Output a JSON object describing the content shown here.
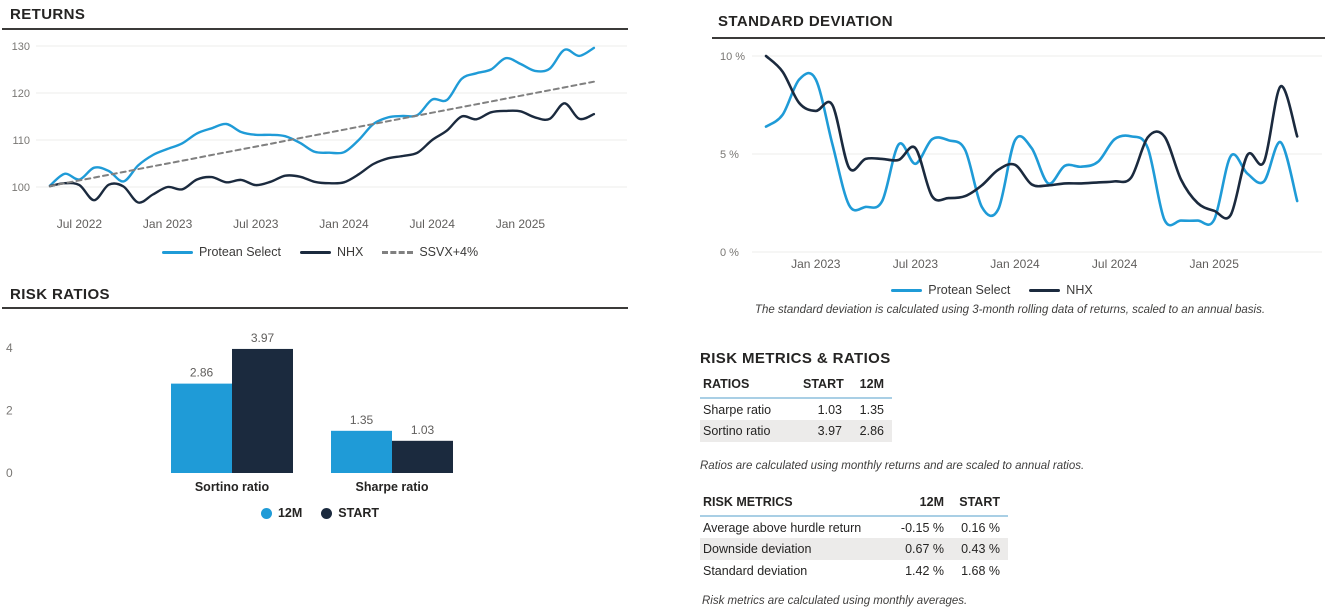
{
  "theme": {
    "accent_blue": "#1f9bd7",
    "navy": "#1b2a3e",
    "dash_gray": "#808080",
    "grid_line": "#ededeb",
    "y_tick_color": "#797774",
    "x_tick_color": "#605e5c",
    "bar_value_color": "#605e5c",
    "header_underline": "#a9cfe5",
    "row_alt_bg": "#ecebea"
  },
  "chart_data": [
    {
      "id": "returns",
      "type": "line",
      "title": "RETURNS",
      "n_points": 38,
      "x_start": "May 2022",
      "x_ticks": [
        {
          "index": 2,
          "label": "Jul 2022"
        },
        {
          "index": 8,
          "label": "Jan 2023"
        },
        {
          "index": 14,
          "label": "Jul 2023"
        },
        {
          "index": 20,
          "label": "Jan 2024"
        },
        {
          "index": 26,
          "label": "Jul 2024"
        },
        {
          "index": 32,
          "label": "Jan 2025"
        }
      ],
      "y_ticks": [
        {
          "value": 100,
          "label": "100"
        },
        {
          "value": 110,
          "label": "110"
        },
        {
          "value": 120,
          "label": "120"
        },
        {
          "value": 130,
          "label": "130"
        }
      ],
      "ylim": [
        95,
        132
      ],
      "grid": true,
      "legend_position": "bottom",
      "series": [
        {
          "name": "Protean Select",
          "color": "#1f9bd7",
          "style": "solid",
          "values": [
            100.3,
            102.8,
            101.6,
            104.1,
            103.4,
            101.2,
            104.6,
            106.8,
            108.1,
            109.3,
            111.4,
            112.5,
            113.4,
            111.7,
            111.1,
            111.1,
            110.8,
            109.4,
            107.5,
            107.3,
            107.4,
            110.0,
            113.4,
            114.8,
            115.1,
            115.3,
            118.6,
            118.5,
            123.0,
            124.2,
            125.0,
            127.4,
            126.2,
            124.7,
            125.2,
            129.2,
            127.9,
            129.6
          ]
        },
        {
          "name": "NHX",
          "color": "#1b2a3e",
          "style": "solid",
          "values": [
            100.2,
            100.8,
            100.4,
            97.2,
            100.5,
            100.1,
            96.7,
            98.4,
            100.0,
            99.5,
            101.6,
            102.1,
            101.0,
            101.5,
            100.4,
            101.1,
            102.4,
            102.2,
            101.1,
            100.8,
            101.0,
            102.7,
            104.9,
            106.1,
            106.6,
            107.3,
            110.0,
            112.0,
            115.0,
            114.4,
            115.9,
            116.2,
            116.1,
            114.8,
            114.5,
            117.8,
            114.5,
            115.5
          ]
        },
        {
          "name": "SSVX+4%",
          "color": "#808080",
          "style": "dashed",
          "values": [
            100.2,
            100.8,
            101.4,
            102.0,
            102.6,
            103.2,
            103.8,
            104.4,
            105.0,
            105.6,
            106.2,
            106.8,
            107.4,
            108.0,
            108.6,
            109.2,
            109.8,
            110.4,
            111.0,
            111.6,
            112.2,
            112.8,
            113.4,
            114.0,
            114.6,
            115.2,
            115.8,
            116.4,
            117.0,
            117.6,
            118.2,
            118.8,
            119.4,
            120.0,
            120.6,
            121.2,
            121.8,
            122.4
          ]
        }
      ]
    },
    {
      "id": "standard_deviation",
      "type": "line",
      "title": "STANDARD DEVIATION",
      "n_points": 33,
      "x_start": "Oct 2022",
      "x_ticks": [
        {
          "index": 3,
          "label": "Jan 2023"
        },
        {
          "index": 9,
          "label": "Jul 2023"
        },
        {
          "index": 15,
          "label": "Jan 2024"
        },
        {
          "index": 21,
          "label": "Jul 2024"
        },
        {
          "index": 27,
          "label": "Jan 2025"
        }
      ],
      "y_ticks": [
        {
          "value": 0,
          "label": "0 %"
        },
        {
          "value": 5,
          "label": "5 %"
        },
        {
          "value": 10,
          "label": "10 %"
        }
      ],
      "ylim": [
        0,
        10.5
      ],
      "grid": true,
      "legend_position": "bottom",
      "series": [
        {
          "name": "Protean Select",
          "color": "#1f9bd7",
          "style": "solid",
          "values": [
            6.4,
            7.0,
            8.8,
            8.8,
            5.5,
            2.4,
            2.3,
            2.6,
            5.5,
            4.5,
            5.75,
            5.7,
            5.2,
            2.3,
            2.2,
            5.7,
            5.3,
            3.5,
            4.4,
            4.35,
            4.6,
            5.75,
            5.9,
            5.3,
            1.65,
            1.6,
            1.6,
            1.65,
            4.9,
            4.0,
            3.6,
            5.6,
            2.6
          ]
        },
        {
          "name": "NHX",
          "color": "#1b2a3e",
          "style": "solid",
          "values": [
            10.0,
            9.2,
            7.6,
            7.2,
            7.5,
            4.3,
            4.75,
            4.75,
            4.7,
            5.3,
            2.85,
            2.75,
            2.85,
            3.4,
            4.2,
            4.45,
            3.45,
            3.4,
            3.5,
            3.5,
            3.55,
            3.6,
            3.8,
            5.85,
            5.9,
            3.7,
            2.5,
            2.1,
            1.9,
            4.95,
            4.6,
            8.45,
            5.9
          ]
        }
      ]
    },
    {
      "id": "risk_ratios",
      "type": "bar",
      "title": "RISK RATIOS",
      "categories": [
        "Sortino ratio",
        "Sharpe ratio"
      ],
      "y_ticks": [
        {
          "value": 0,
          "label": "0"
        },
        {
          "value": 2,
          "label": "2"
        },
        {
          "value": 4,
          "label": "4"
        }
      ],
      "ylim": [
        0,
        4.6
      ],
      "grid": false,
      "legend_position": "bottom",
      "series": [
        {
          "name": "12M",
          "color": "#1f9bd7",
          "values": [
            2.86,
            1.35
          ],
          "labels": [
            "2.86",
            "1.35"
          ]
        },
        {
          "name": "START",
          "color": "#1b2a3e",
          "values": [
            3.97,
            1.03
          ],
          "labels": [
            "3.97",
            "1.03"
          ]
        }
      ]
    }
  ],
  "footnotes": {
    "standard_deviation": "The standard deviation is calculated using 3-month rolling data of returns, scaled to an annual basis."
  },
  "tables": {
    "section_title": "RISK METRICS & RATIOS",
    "ratios": {
      "columns": [
        "RATIOS",
        "START",
        "12M"
      ],
      "rows": [
        [
          "Sharpe ratio",
          "1.03",
          "1.35"
        ],
        [
          "Sortino ratio",
          "3.97",
          "2.86"
        ]
      ],
      "footnote": "Ratios are calculated using monthly returns and are scaled to annual ratios."
    },
    "risk_metrics": {
      "columns": [
        "RISK METRICS",
        "12M",
        "START"
      ],
      "rows": [
        [
          "Average above hurdle return",
          "-0.15 %",
          "0.16 %"
        ],
        [
          "Downside deviation",
          "0.67 %",
          "0.43 %"
        ],
        [
          "Standard deviation",
          "1.42 %",
          "1.68 %"
        ]
      ],
      "footnote": "Risk metrics are calculated using monthly averages."
    }
  }
}
